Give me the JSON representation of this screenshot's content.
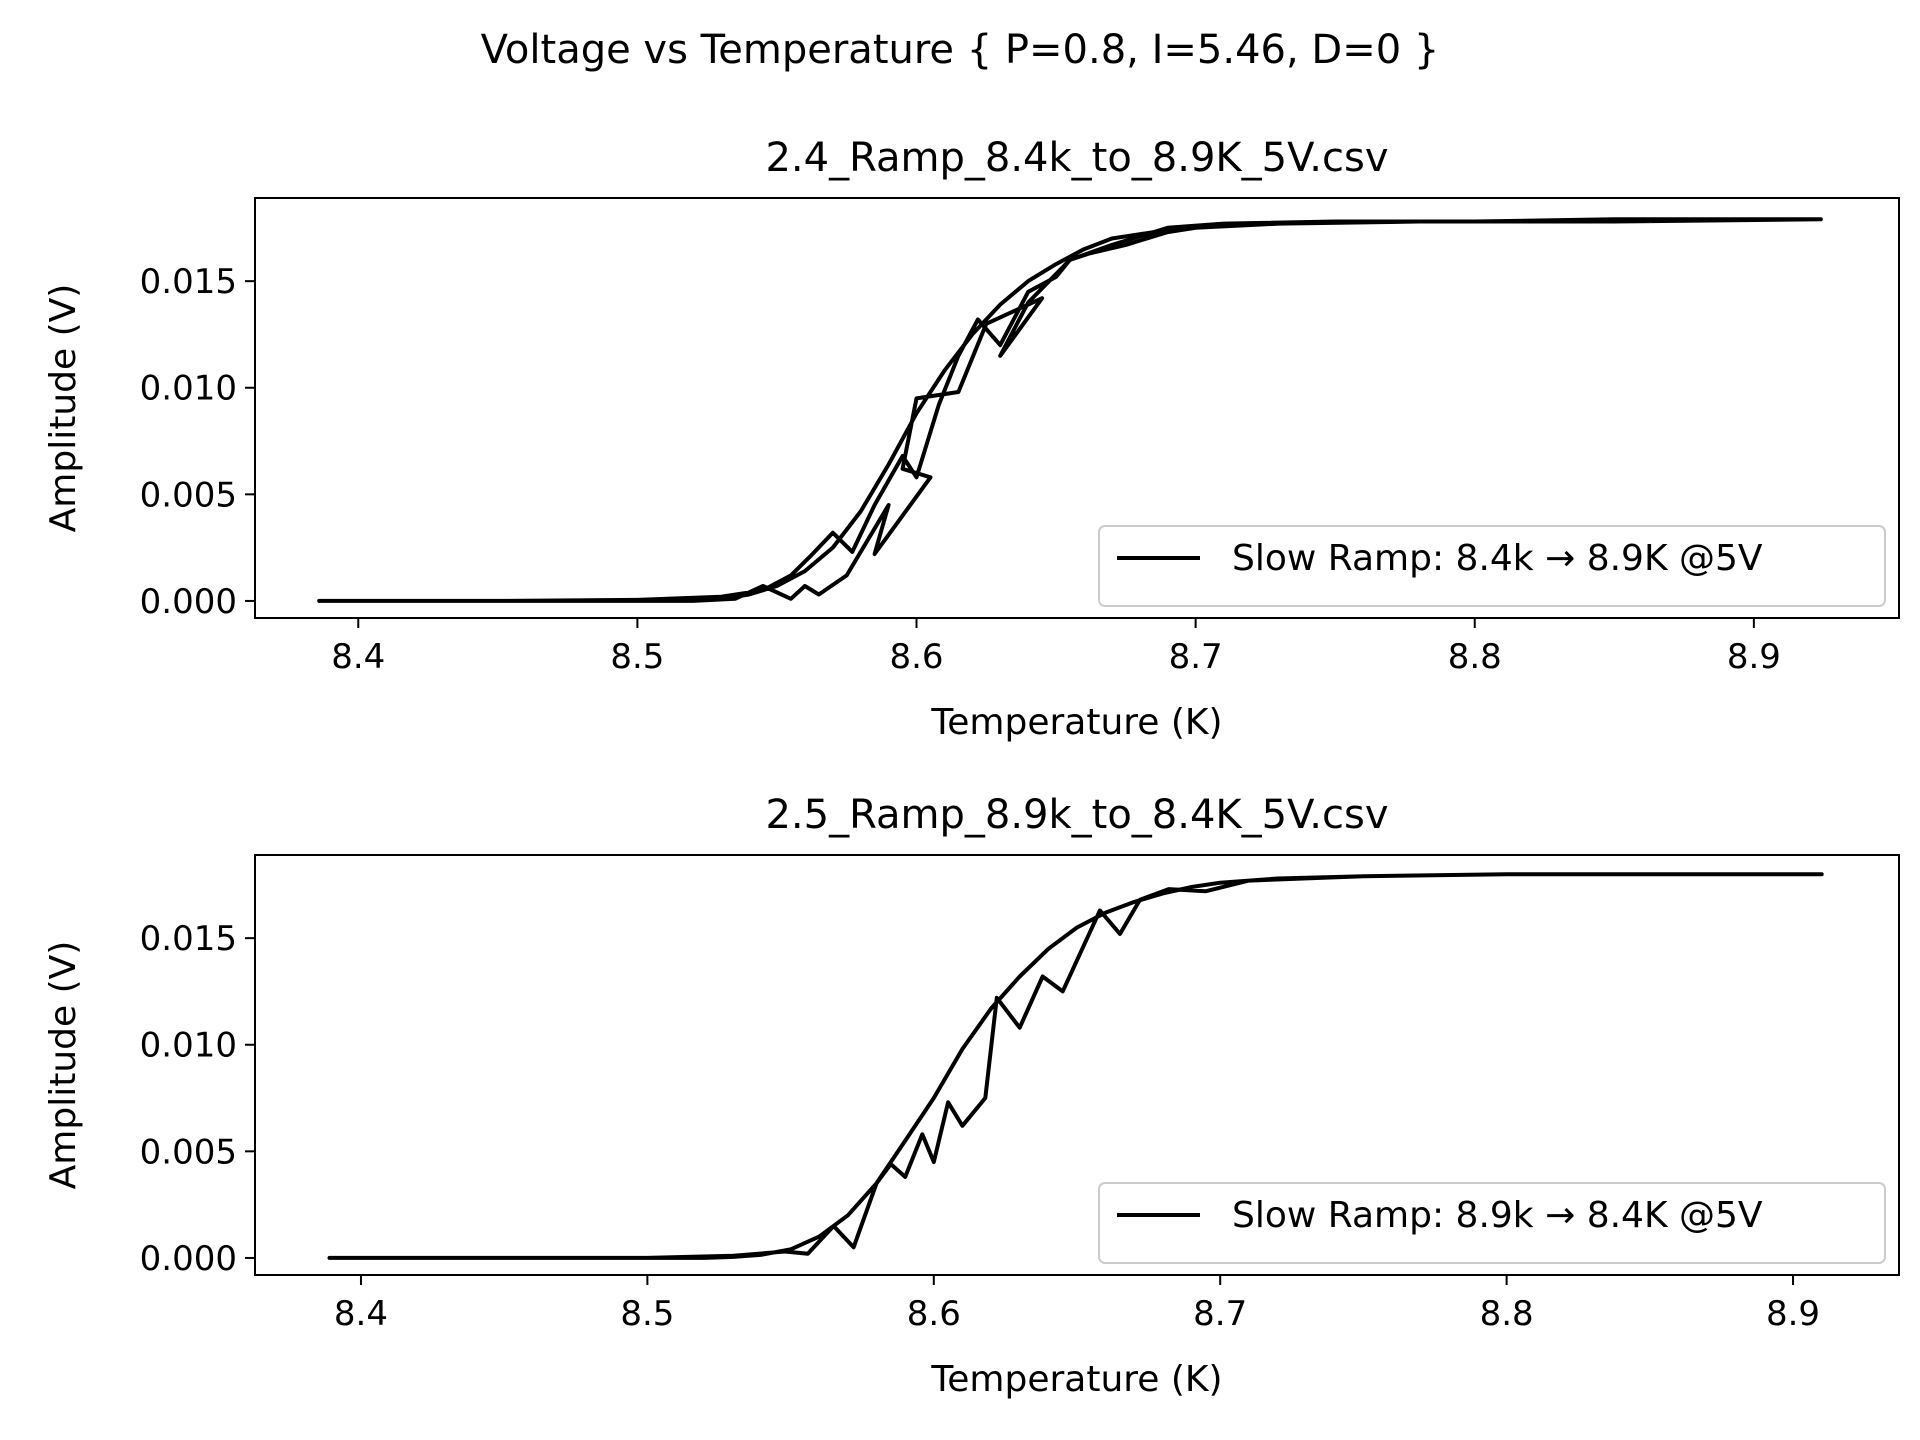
{
  "figure": {
    "suptitle": "Voltage vs Temperature { P=0.8, I=5.46, D=0 }",
    "line_color": "#000000"
  },
  "chart_data": [
    {
      "type": "line",
      "title": "2.4_Ramp_8.4k_to_8.9K_5V.csv",
      "xlabel": "Temperature (K)",
      "ylabel": "Amplitude (V)",
      "xlim": [
        8.363,
        8.952
      ],
      "ylim": [
        -0.0008,
        0.0189
      ],
      "xticks": [
        8.4,
        8.5,
        8.6,
        8.7,
        8.8,
        8.9
      ],
      "xtick_labels": [
        "8.4",
        "8.5",
        "8.6",
        "8.7",
        "8.8",
        "8.9"
      ],
      "yticks": [
        0.0,
        0.005,
        0.01,
        0.015
      ],
      "ytick_labels": [
        "0.000",
        "0.005",
        "0.010",
        "0.015"
      ],
      "legend_position": "lower right",
      "series": [
        {
          "name": "Slow Ramp: 8.4k → 8.9K @5V",
          "x": [
            8.386,
            8.45,
            8.5,
            8.52,
            8.53,
            8.54,
            8.55,
            8.56,
            8.57,
            8.58,
            8.59,
            8.6,
            8.61,
            8.62,
            8.63,
            8.64,
            8.65,
            8.66,
            8.67,
            8.68,
            8.69,
            8.7,
            8.72,
            8.75,
            8.8,
            8.85,
            8.924,
            8.9,
            8.85,
            8.8,
            8.75,
            8.71,
            8.69,
            8.68,
            8.67,
            8.655,
            8.64,
            8.63,
            8.645,
            8.625,
            8.615,
            8.6,
            8.595,
            8.605,
            8.585,
            8.59,
            8.575,
            8.565,
            8.56,
            8.555,
            8.545,
            8.535,
            8.52,
            8.5,
            8.45,
            8.387,
            8.45,
            8.5,
            8.53,
            8.545,
            8.555,
            8.562,
            8.57,
            8.577,
            8.585,
            8.595,
            8.6,
            8.608,
            8.615,
            8.622,
            8.63,
            8.64,
            8.65,
            8.655,
            8.662,
            8.675,
            8.69,
            8.7,
            8.73,
            8.78,
            8.85,
            8.924
          ],
          "y": [
            0.0,
            0.0,
            0.0,
            2e-05,
            0.0001,
            0.0003,
            0.0007,
            0.0014,
            0.0025,
            0.0042,
            0.0064,
            0.0088,
            0.0108,
            0.0125,
            0.0139,
            0.015,
            0.0158,
            0.0165,
            0.017,
            0.0172,
            0.0174,
            0.0176,
            0.0177,
            0.0178,
            0.0178,
            0.0179,
            0.0179,
            0.0179,
            0.0178,
            0.0178,
            0.0178,
            0.0177,
            0.0175,
            0.0171,
            0.0167,
            0.016,
            0.014,
            0.0115,
            0.0142,
            0.013,
            0.0098,
            0.0095,
            0.0062,
            0.0058,
            0.0022,
            0.0045,
            0.0012,
            0.0003,
            0.0007,
            0.0001,
            0.0007,
            0.0001,
            0.0,
            0.0,
            0.0,
            0.0,
            0.0,
            5e-05,
            0.0002,
            0.0005,
            0.0012,
            0.0021,
            0.0032,
            0.0023,
            0.0045,
            0.0068,
            0.0058,
            0.0092,
            0.0115,
            0.0132,
            0.012,
            0.0145,
            0.0152,
            0.016,
            0.0163,
            0.0167,
            0.0173,
            0.0175,
            0.0177,
            0.0178,
            0.0178,
            0.0179
          ]
        }
      ]
    },
    {
      "type": "line",
      "title": "2.5_Ramp_8.9k_to_8.4K_5V.csv",
      "xlabel": "Temperature (K)",
      "ylabel": "Amplitude (V)",
      "xlim": [
        8.363,
        8.937
      ],
      "ylim": [
        -0.0008,
        0.0189
      ],
      "xticks": [
        8.4,
        8.5,
        8.6,
        8.7,
        8.8,
        8.9
      ],
      "xtick_labels": [
        "8.4",
        "8.5",
        "8.6",
        "8.7",
        "8.8",
        "8.9"
      ],
      "yticks": [
        0.0,
        0.005,
        0.01,
        0.015
      ],
      "ytick_labels": [
        "0.000",
        "0.005",
        "0.010",
        "0.015"
      ],
      "legend_position": "lower right",
      "series": [
        {
          "name": "Slow Ramp: 8.9k → 8.4K @5V",
          "x": [
            8.91,
            8.85,
            8.8,
            8.75,
            8.72,
            8.7,
            8.69,
            8.68,
            8.67,
            8.66,
            8.65,
            8.64,
            8.63,
            8.62,
            8.61,
            8.6,
            8.59,
            8.58,
            8.57,
            8.56,
            8.55,
            8.54,
            8.53,
            8.52,
            8.5,
            8.45,
            8.389,
            8.45,
            8.5,
            8.53,
            8.548,
            8.556,
            8.565,
            8.572,
            8.58,
            8.585,
            8.59,
            8.596,
            8.6,
            8.605,
            8.61,
            8.618,
            8.622,
            8.63,
            8.638,
            8.645,
            8.658,
            8.665,
            8.672,
            8.682,
            8.695,
            8.71,
            8.75,
            8.8,
            8.85,
            8.91
          ],
          "y": [
            0.018,
            0.018,
            0.018,
            0.0179,
            0.0178,
            0.0176,
            0.0174,
            0.0171,
            0.0167,
            0.0162,
            0.0155,
            0.0145,
            0.0132,
            0.0117,
            0.0098,
            0.0075,
            0.0055,
            0.0035,
            0.002,
            0.001,
            0.0004,
            0.00015,
            5e-05,
            0.0,
            0.0,
            0.0,
            0.0,
            0.0,
            0.0,
            0.0001,
            0.0003,
            0.0002,
            0.0015,
            0.0005,
            0.0035,
            0.0044,
            0.0038,
            0.0058,
            0.0045,
            0.0073,
            0.0062,
            0.0075,
            0.0122,
            0.0108,
            0.0132,
            0.0125,
            0.0163,
            0.0152,
            0.0168,
            0.0173,
            0.0172,
            0.0177,
            0.0179,
            0.018,
            0.018,
            0.018
          ]
        }
      ]
    }
  ]
}
